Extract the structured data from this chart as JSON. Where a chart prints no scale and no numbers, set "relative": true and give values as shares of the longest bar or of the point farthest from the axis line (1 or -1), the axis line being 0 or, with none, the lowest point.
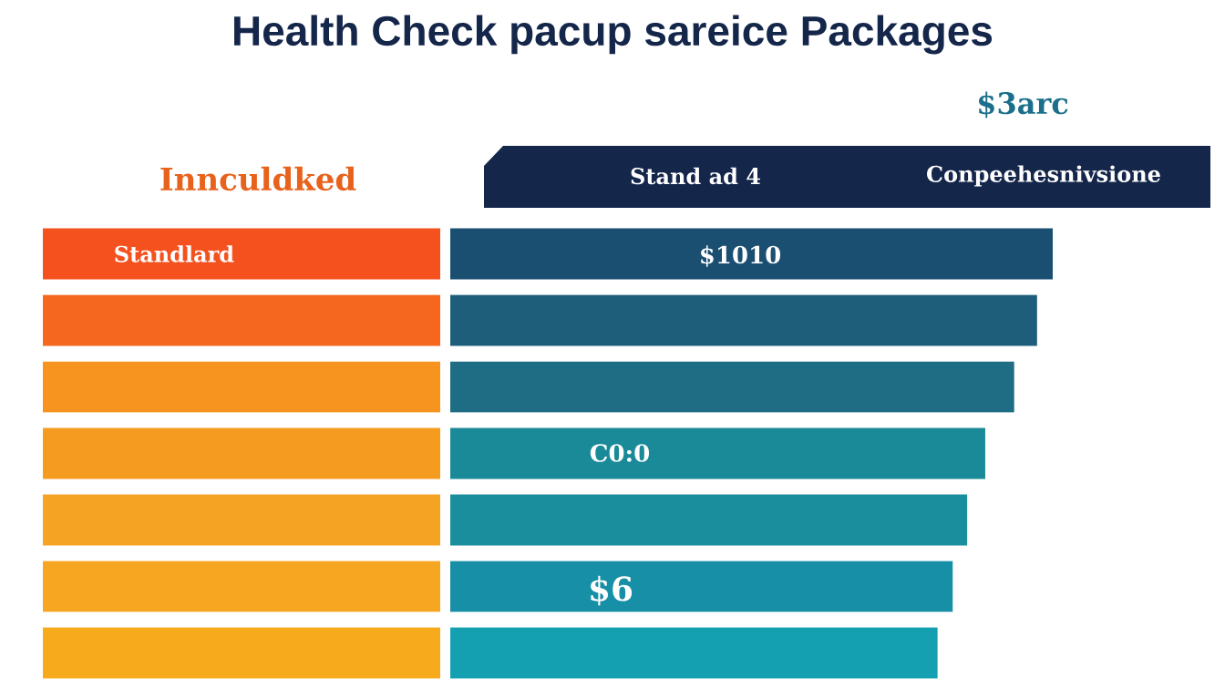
{
  "chart_data": [
    {
      "type": "bar",
      "orientation": "horizontal",
      "relative": true,
      "title": "Health Check pacup sareice Packages",
      "subtitle": "Innculdked",
      "categories": [
        "Standlard",
        null,
        null,
        null,
        null,
        null,
        null
      ],
      "values": [
        1,
        1,
        1,
        1,
        1,
        1,
        1
      ],
      "colors": [
        "#f4511e",
        "#f5661f",
        "#f6941f",
        "#f59c20",
        "#f5a322",
        "#f6a620",
        "#f7aa1c"
      ]
    },
    {
      "type": "bar",
      "orientation": "horizontal",
      "relative": true,
      "annotations": [
        "$3arc",
        "Stand ad 4",
        "Conpeehesnivsione",
        "$1010",
        "C0:0",
        "$6"
      ],
      "categories": [
        null,
        null,
        null,
        null,
        null,
        null,
        null
      ],
      "values": [
        1,
        0.974,
        0.936,
        0.888,
        0.858,
        0.834,
        0.809
      ],
      "colors": [
        "#1b4f72",
        "#1e5e7a",
        "#1f6d84",
        "#1a8a98",
        "#1a8e9c",
        "#178fa6",
        "#15a0b2"
      ]
    }
  ]
}
